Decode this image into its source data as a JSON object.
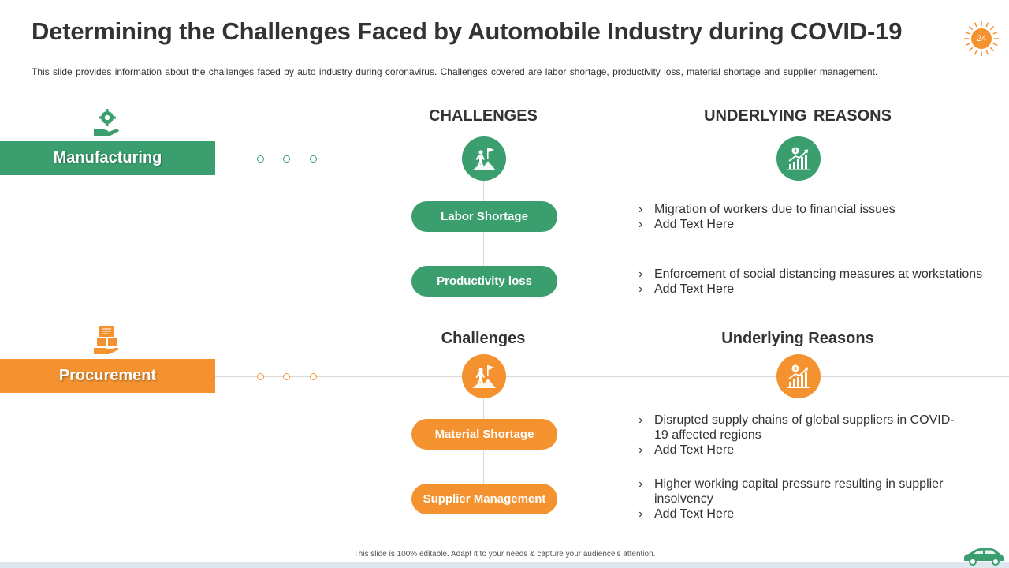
{
  "title": "Determining the Challenges Faced by Automobile Industry during COVID-19",
  "subtitle": "This slide provides information about the challenges faced by auto industry during coronavirus. Challenges covered are labor shortage, productivity loss, material shortage and supplier management.",
  "page_number": "24",
  "colors": {
    "green": "#3a9e6e",
    "orange": "#f4922f",
    "line": "#d9d9d9",
    "text": "#333333"
  },
  "sections": [
    {
      "name": "Manufacturing",
      "icon": "gear-hand-icon",
      "challenges_header": "CHALLENGES",
      "reasons_header": "UNDERLYING  REASONS",
      "challenges": [
        {
          "label": "Labor Shortage",
          "reasons": [
            "Migration of workers due to financial issues",
            "Add Text Here"
          ]
        },
        {
          "label": "Productivity loss",
          "reasons": [
            "Enforcement of social distancing measures at workstations",
            "Add Text Here"
          ]
        }
      ]
    },
    {
      "name": "Procurement",
      "icon": "boxes-hand-icon",
      "challenges_header": "Challenges",
      "reasons_header": "Underlying Reasons",
      "challenges": [
        {
          "label": "Material Shortage",
          "reasons": [
            "Disrupted supply chains of global suppliers in COVID-19 affected regions",
            "Add Text Here"
          ]
        },
        {
          "label": "Supplier Management",
          "reasons": [
            "Higher working capital pressure resulting in supplier insolvency",
            "Add Text Here"
          ]
        }
      ]
    }
  ],
  "footer_note": "This slide is 100% editable. Adapt it to your needs & capture your audience’s attention."
}
